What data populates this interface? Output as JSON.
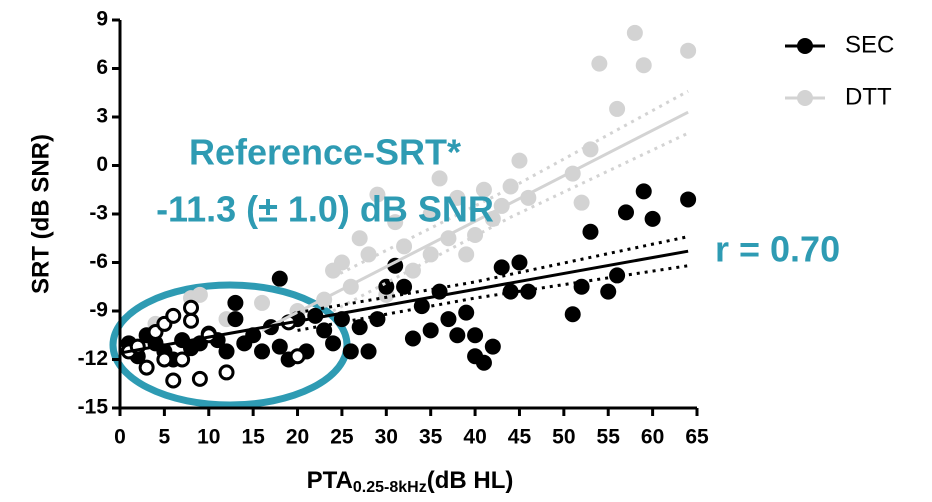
{
  "chart_data": {
    "type": "scatter",
    "y_label": "SRT (dB SNR)",
    "x_label": {
      "main": "PTA",
      "sub": "0.25-8kHz",
      "unit": "(dB HL)"
    },
    "annotations": [
      "Reference-SRT*",
      "-11.3 (± 1.0) dB SNR",
      "r = 0.70"
    ],
    "annotation_color": "#2e9bb3",
    "xlim": [
      0,
      65
    ],
    "ylim": [
      -15,
      9
    ],
    "xticks": [
      0,
      5,
      10,
      15,
      20,
      25,
      30,
      35,
      40,
      45,
      50,
      55,
      60,
      65
    ],
    "yticks": [
      -15,
      -12,
      -9,
      -6,
      -3,
      0,
      3,
      6,
      9
    ],
    "series": [
      {
        "name": "DTT",
        "color": "#d3d3d3",
        "x": [
          4,
          8,
          9,
          12,
          16,
          20,
          23,
          24,
          25,
          26,
          27,
          28,
          29,
          30,
          31,
          32,
          33,
          35,
          35,
          36,
          37,
          38,
          39,
          40,
          41,
          42,
          43,
          44,
          45,
          46,
          51,
          52,
          53,
          54,
          56,
          58,
          59,
          64
        ],
        "values": [
          -9.8,
          -8.2,
          -8,
          -9.5,
          -8.5,
          -9,
          -8.3,
          -6.5,
          -6,
          -7.5,
          -4.5,
          -5.5,
          -1.8,
          -8,
          -3.5,
          -5,
          -6.5,
          -5.5,
          -3,
          -0.8,
          -4.5,
          -2,
          -5.5,
          -4.3,
          -1.5,
          -3.3,
          -2.5,
          -1.3,
          0.3,
          -2,
          -0.5,
          -2.3,
          1,
          6.3,
          3.5,
          8.2,
          6.2,
          7.1
        ],
        "fit": {
          "x": [
            16,
            64
          ],
          "values": [
            -10.2,
            3.3
          ]
        },
        "band_upper": {
          "x": [
            24,
            44,
            64
          ],
          "values": [
            -6.9,
            -1.4,
            4.6
          ]
        },
        "band_lower": {
          "x": [
            24,
            44,
            64
          ],
          "values": [
            -9,
            -3.2,
            2.0
          ]
        }
      },
      {
        "name": "SEC",
        "color": "#000000",
        "x": [
          1,
          2,
          3,
          4,
          5,
          6,
          7,
          8,
          9,
          10,
          11,
          12,
          13,
          13,
          14,
          15,
          16,
          17,
          18,
          18,
          19,
          20,
          21,
          22,
          23,
          24,
          25,
          26,
          27,
          28,
          29,
          30,
          31,
          32,
          33,
          34,
          35,
          36,
          37,
          38,
          39,
          40,
          40,
          41,
          42,
          43,
          44,
          45,
          46,
          51,
          52,
          53,
          55,
          56,
          57,
          59,
          60,
          64
        ],
        "values": [
          -11,
          -11.8,
          -10.5,
          -11,
          -11.5,
          -12,
          -10.8,
          -11.3,
          -11,
          -10.4,
          -10.8,
          -11.5,
          -8.5,
          -9.5,
          -11,
          -10.5,
          -11.5,
          -10,
          -7,
          -11.2,
          -12,
          -9.5,
          -11.5,
          -9.3,
          -10.2,
          -11,
          -9.5,
          -11.5,
          -10,
          -11.5,
          -9.5,
          -7.5,
          -6.2,
          -7.5,
          -10.7,
          -8.7,
          -10.2,
          -7.8,
          -9.5,
          -10.5,
          -9.1,
          -11.8,
          -10.5,
          -12.2,
          -11.2,
          -6.3,
          -7.8,
          -6,
          -7.8,
          -9.2,
          -7.5,
          -4.1,
          -7.8,
          -6.8,
          -2.9,
          -1.6,
          -3.3,
          -2.1
        ],
        "open_x": [
          1,
          2,
          3,
          4,
          5,
          5,
          6,
          6,
          7,
          8,
          8,
          9,
          10,
          12,
          19,
          20
        ],
        "open_values": [
          -11.5,
          -11.2,
          -12.5,
          -10.3,
          -9.8,
          -12,
          -9.3,
          -13.3,
          -12,
          -9.6,
          -8.8,
          -13.2,
          -10.5,
          -12.8,
          -9.7,
          -11.8
        ],
        "fit": {
          "x": [
            0,
            64
          ],
          "values": [
            -11.6,
            -5.3
          ]
        },
        "band_upper": {
          "x": [
            20,
            40,
            64
          ],
          "values": [
            -9.1,
            -7.2,
            -4.4
          ]
        },
        "band_lower": {
          "x": [
            20,
            40,
            64
          ],
          "values": [
            -10.2,
            -8.2,
            -6.2
          ]
        }
      }
    ],
    "legend_order": [
      1,
      0
    ],
    "legend": "top-right"
  }
}
